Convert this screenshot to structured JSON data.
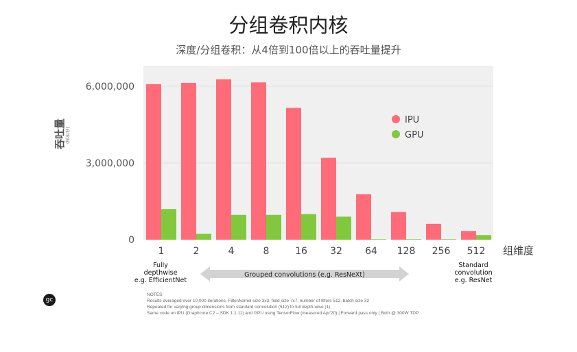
{
  "title": "分组卷积内核",
  "subtitle": "深度/分组卷积：从4倍到100倍以上的吞吐量提升",
  "chart_data": {
    "type": "bar",
    "categories": [
      "1",
      "2",
      "4",
      "8",
      "16",
      "32",
      "64",
      "128",
      "256",
      "512"
    ],
    "series": [
      {
        "name": "IPU",
        "color": "#ff6b78",
        "values": [
          6080000,
          6130000,
          6270000,
          6150000,
          5150000,
          3200000,
          1780000,
          1080000,
          620000,
          340000
        ]
      },
      {
        "name": "GPU",
        "color": "#82c83c",
        "values": [
          1200000,
          230000,
          970000,
          970000,
          1000000,
          900000,
          20000,
          20000,
          20000,
          180000
        ]
      }
    ],
    "ylim": [
      0,
      6800000
    ],
    "yticks": [
      0,
      3000000,
      6000000
    ],
    "ytick_labels": [
      "0",
      "3,000,000",
      "6,000,000"
    ],
    "ylabel": "吞吐量",
    "ylabel_sub": "(样本/秒)",
    "xlabel": "组维度",
    "grid": true,
    "legend_position": "upper-right"
  },
  "annotations": {
    "left_caption": [
      "Fully",
      "depthwise",
      "e.g. EfficientNet"
    ],
    "middle_caption": "Grouped convolutions (e.g. ResNeXt)",
    "right_caption": [
      "Standard",
      "convolution",
      "e.g. ResNet"
    ]
  },
  "notes": [
    "NOTES:",
    "Results averaged over 10,000 iterations. Filter/kernel size 3x3, field size 7x7, number of filters 512, batch size 32",
    "Repeated for varying group dimensions from standard convolution (512) to full depth-wise (1)",
    "Same code on IPU (Graphcore C2 – SDK 1.1.11) and GPU using TensorFlow (measured Apr'20) | Forward pass only | Both @ 300W TDP"
  ],
  "logo_text": "gc"
}
